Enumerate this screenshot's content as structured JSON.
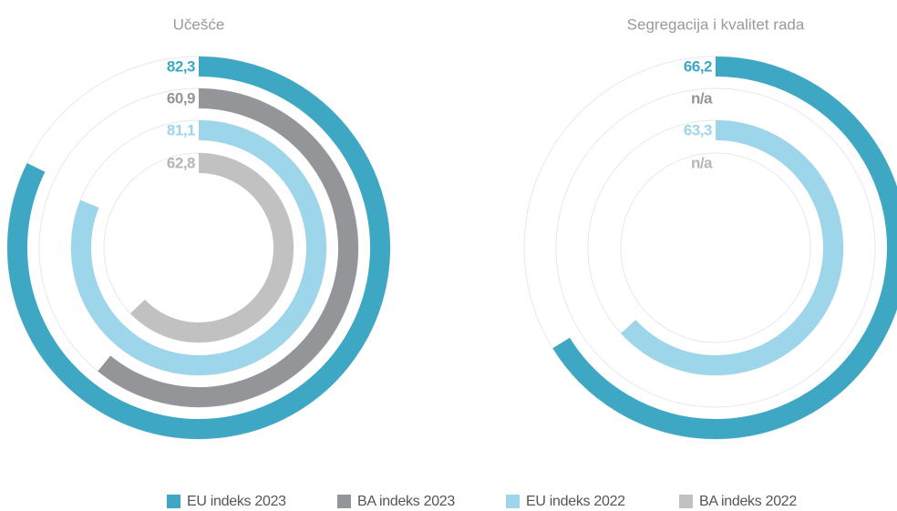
{
  "chart_data": [
    {
      "type": "radial_bar",
      "title": "Učešće",
      "values": [
        82.3,
        60.9,
        81.1,
        62.8
      ],
      "value_labels": [
        "82,3",
        "60,9",
        "81,1",
        "62,8"
      ],
      "ylim": [
        0,
        100
      ]
    },
    {
      "type": "radial_bar",
      "title": "Segregacija i kvalitet rada",
      "values": [
        66.2,
        null,
        63.3,
        null
      ],
      "value_labels": [
        "66,2",
        "n/a",
        "63,3",
        "n/a"
      ],
      "ylim": [
        0,
        100
      ]
    }
  ],
  "legend": {
    "names": [
      "EU indeks 2023",
      "BA indeks 2023",
      "EU indeks 2022",
      "BA indeks 2022"
    ],
    "colors": [
      "#3ea8c4",
      "#939598",
      "#9dd5ea",
      "#c2c1c1"
    ]
  }
}
